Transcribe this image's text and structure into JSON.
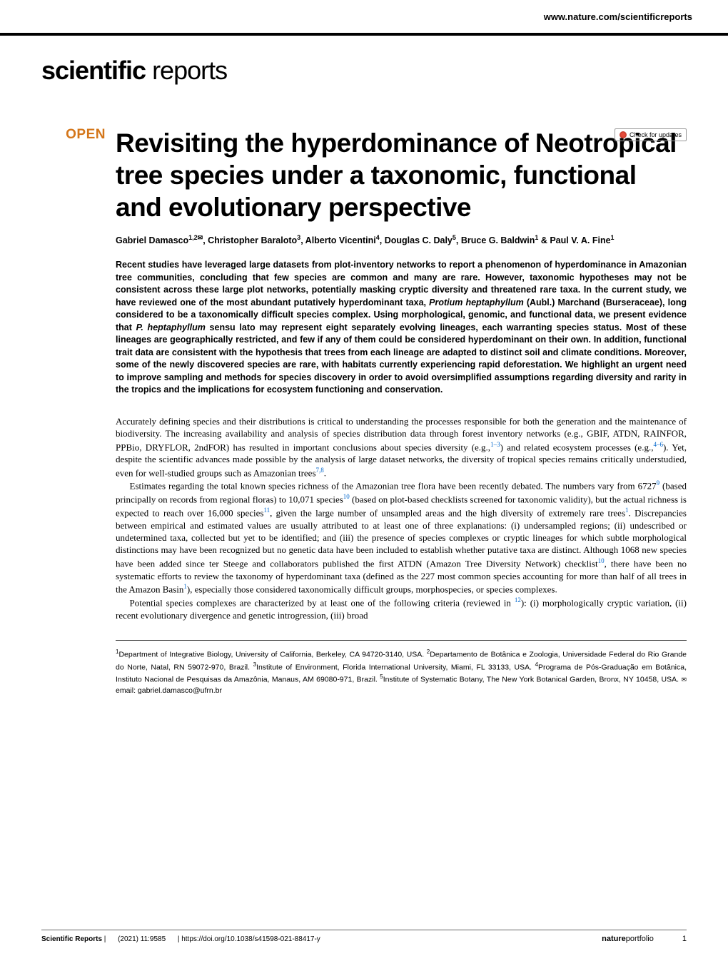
{
  "header": {
    "url": "www.nature.com/scientificreports"
  },
  "journal": {
    "name_bold": "scientific",
    "name_light": " reports"
  },
  "check_updates": "Check for updates",
  "open_badge": "OPEN",
  "article": {
    "title": "Revisiting the hyperdominance of Neotropical tree species under a taxonomic, functional and evolutionary perspective",
    "authors_html": "Gabriel Damasco<sup>1,2</sup><span class='mail-icon'>✉</span>, Christopher Baraloto<sup>3</sup>, Alberto Vicentini<sup>4</sup>, Douglas C. Daly<sup>5</sup>, Bruce G. Baldwin<sup>1</sup> & Paul V. A. Fine<sup>1</sup>",
    "abstract": "Recent studies have leveraged large datasets from plot-inventory networks to report a phenomenon of hyperdominance in Amazonian tree communities, concluding that few species are common and many are rare. However, taxonomic hypotheses may not be consistent across these large plot networks, potentially masking cryptic diversity and threatened rare taxa. In the current study, we have reviewed one of the most abundant putatively hyperdominant taxa, <span class='italic'>Protium heptaphyllum</span> (Aubl.) Marchand (Burseraceae), long considered to be a taxonomically difficult species complex. Using morphological, genomic, and functional data, we present evidence that <span class='italic'>P. heptaphyllum</span> sensu lato may represent eight separately evolving lineages, each warranting species status. Most of these lineages are geographically restricted, and few if any of them could be considered hyperdominant on their own. In addition, functional trait data are consistent with the hypothesis that trees from each lineage are adapted to distinct soil and climate conditions. Moreover, some of the newly discovered species are rare, with habitats currently experiencing rapid deforestation. We highlight an urgent need to improve sampling and methods for species discovery in order to avoid oversimplified assumptions regarding diversity and rarity in the tropics and the implications for ecosystem functioning and conservation.",
    "body_p1": "Accurately defining species and their distributions is critical to understanding the processes responsible for both the generation and the maintenance of biodiversity. The increasing availability and analysis of species distribution data through forest inventory networks (e.g., GBIF, ATDN, RAINFOR, PPBio, DRYFLOR, 2ndFOR) has resulted in important conclusions about species diversity (e.g.,<sup>1–3</sup>) and related ecosystem processes (e.g.,<sup>4–6</sup>). Yet, despite the scientific advances made possible by the analysis of large dataset networks, the diversity of tropical species remains critically understudied, even for well-studied groups such as Amazonian trees<sup>7,8</sup>.",
    "body_p2": "Estimates regarding the total known species richness of the Amazonian tree flora have been recently debated. The numbers vary from 6727<sup>9</sup> (based principally on records from regional floras) to 10,071 species<sup>10</sup> (based on plot-based checklists screened for taxonomic validity), but the actual richness is expected to reach over 16,000 species<sup>11</sup>, given the large number of unsampled areas and the high diversity of extremely rare trees<sup>1</sup>. Discrepancies between empirical and estimated values are usually attributed to at least one of three explanations: (i) undersampled regions; (ii) undescribed or undetermined taxa, collected but yet to be identified; and (iii) the presence of species complexes or cryptic lineages for which subtle morphological distinctions may have been recognized but no genetic data have been included to establish whether putative taxa are distinct. Although 1068 new species have been added since ter Steege and collaborators published the first ATDN (Amazon Tree Diversity Network) checklist<sup>10</sup>, there have been no systematic efforts to review the taxonomy of hyperdominant taxa (defined as the 227 most common species accounting for more than half of all trees in the Amazon Basin<sup>1</sup>), especially those considered taxonomically difficult groups, morphospecies, or species complexes.",
    "body_p3": "Potential species complexes are characterized by at least one of the following criteria (reviewed in <sup>12</sup>): (i) morphologically cryptic variation, (ii) recent evolutionary divergence and genetic introgression, (iii) broad",
    "affiliations": "<sup>1</sup>Department of Integrative Biology, University of California, Berkeley, CA 94720-3140, USA. <sup>2</sup>Departamento de Botânica e Zoologia, Universidade Federal do Rio Grande do Norte, Natal, RN 59072-970, Brazil. <sup>3</sup>Institute of Environment, Florida International University, Miami, FL 33133, USA. <sup>4</sup>Programa de Pós-Graduação em Botânica, Instituto Nacional de Pesquisas da Amazônia, Manaus, AM 69080-971, Brazil. <sup>5</sup>Institute of Systematic Botany, The New York Botanical Garden, Bronx, NY 10458, USA. <span class='mail'>✉</span>email: gabriel.damasco@ufrn.br"
  },
  "footer": {
    "journal": "Scientific Reports",
    "citation": "(2021) 11:9585",
    "doi": "https://doi.org/10.1038/s41598-021-88417-y",
    "portfolio_bold": "nature",
    "portfolio_light": "portfolio",
    "page": "1"
  },
  "colors": {
    "open_badge": "#d4761a",
    "ref_link": "#0066cc",
    "text": "#000000",
    "bg": "#ffffff"
  }
}
